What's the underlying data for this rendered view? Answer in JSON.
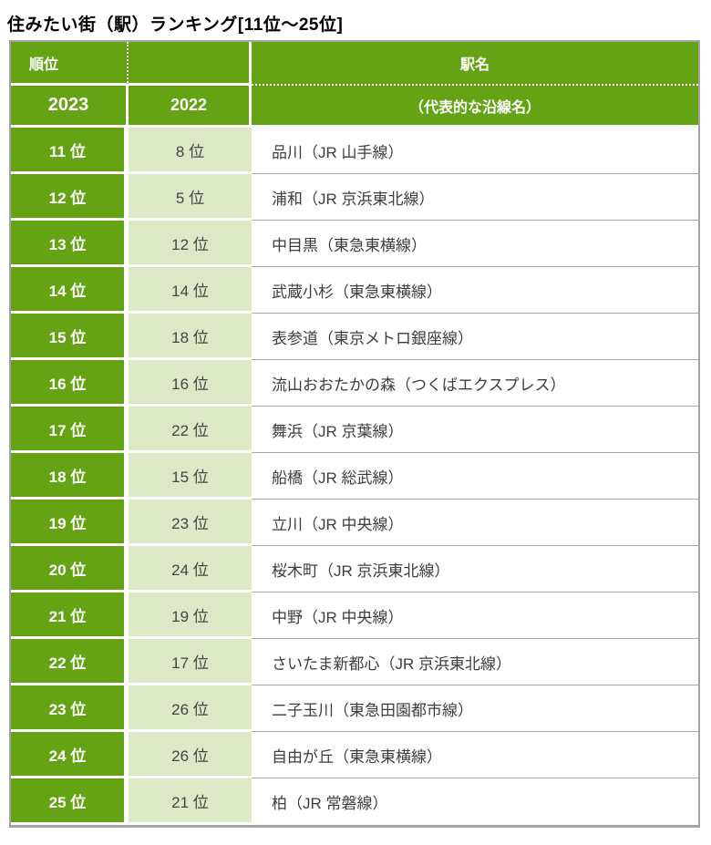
{
  "title": "住みたい街（駅）ランキング[11位～25位]",
  "header": {
    "rank": "順位",
    "station": "駅名",
    "year_2023": "2023",
    "year_2022": "2022",
    "line": "（代表的な沿線名）"
  },
  "colors": {
    "header_green": "#64a414",
    "rank_cell_green": "#64a414",
    "prev_rank_light_green": "#dde8c7",
    "outer_border_gray": "#a3a3a3",
    "row_separator_gray": "#a9a9a9",
    "cell_text_dark": "#3d3d3d",
    "header_text_white": "#ffffff"
  },
  "chart_data": {
    "type": "table",
    "title": "住みたい街（駅）ランキング[11位～25位]",
    "columns": [
      "順位 2023",
      "順位 2022",
      "駅名（代表的な沿線名）"
    ],
    "rows": [
      [
        "11 位",
        "8 位",
        "品川（JR 山手線）"
      ],
      [
        "12 位",
        "5 位",
        "浦和（JR 京浜東北線）"
      ],
      [
        "13 位",
        "12 位",
        "中目黒（東急東横線）"
      ],
      [
        "14 位",
        "14 位",
        "武蔵小杉（東急東横線）"
      ],
      [
        "15 位",
        "18 位",
        "表参道（東京メトロ銀座線）"
      ],
      [
        "16 位",
        "16 位",
        "流山おおたかの森（つくばエクスプレス）"
      ],
      [
        "17 位",
        "22 位",
        "舞浜（JR 京葉線）"
      ],
      [
        "18 位",
        "15 位",
        "船橋（JR 総武線）"
      ],
      [
        "19 位",
        "23 位",
        "立川（JR 中央線）"
      ],
      [
        "20 位",
        "24 位",
        "桜木町（JR 京浜東北線）"
      ],
      [
        "21 位",
        "19 位",
        "中野（JR 中央線）"
      ],
      [
        "22 位",
        "17 位",
        "さいたま新都心（JR 京浜東北線）"
      ],
      [
        "23 位",
        "26 位",
        "二子玉川（東急田園都市線）"
      ],
      [
        "24 位",
        "26 位",
        "自由が丘（東急東横線）"
      ],
      [
        "25 位",
        "21 位",
        "柏（JR 常磐線）"
      ]
    ]
  }
}
